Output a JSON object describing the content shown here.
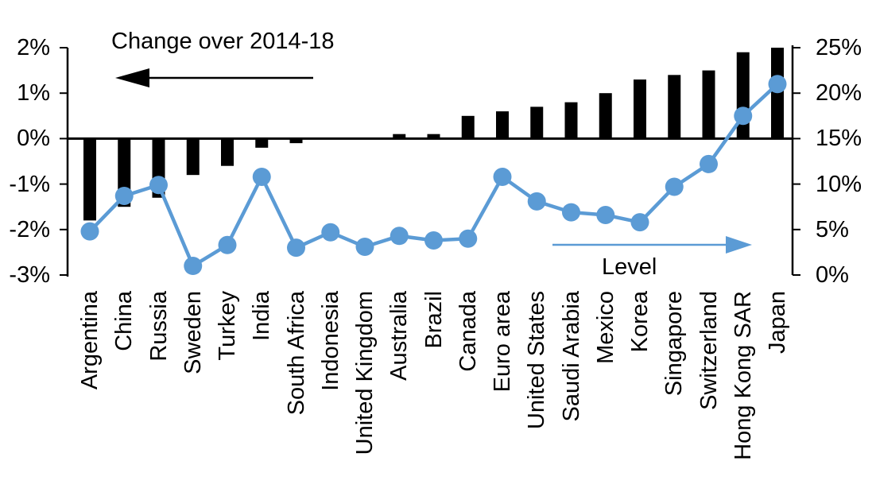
{
  "chart_data": {
    "type": "bar",
    "subtype": "dual-axis bar + line",
    "title": "Change over 2014-18",
    "line_label": "Level",
    "categories": [
      "Argentina",
      "China",
      "Russia",
      "Sweden",
      "Turkey",
      "India",
      "South Africa",
      "Indonesia",
      "United Kingdom",
      "Australia",
      "Brazil",
      "Canada",
      "Euro area",
      "United States",
      "Saudi Arabia",
      "Mexico",
      "Korea",
      "Singapore",
      "Switzerland",
      "Hong Kong SAR",
      "Japan"
    ],
    "series": [
      {
        "name": "Change over 2014-18",
        "type": "bar",
        "axis": "left",
        "color": "#000000",
        "values": [
          -1.8,
          -1.5,
          -1.3,
          -0.8,
          -0.6,
          -0.2,
          -0.1,
          0.0,
          0.0,
          0.1,
          0.1,
          0.5,
          0.6,
          0.7,
          0.8,
          1.0,
          1.3,
          1.4,
          1.5,
          1.9,
          2.0
        ]
      },
      {
        "name": "Level",
        "type": "line",
        "axis": "right",
        "color": "#5b9bd5",
        "values": [
          4.8,
          8.7,
          9.9,
          1.0,
          3.3,
          10.8,
          3.0,
          4.7,
          3.1,
          4.3,
          3.8,
          4.0,
          10.8,
          8.1,
          6.9,
          6.6,
          5.8,
          9.7,
          12.2,
          17.5,
          21.0
        ]
      }
    ],
    "left_axis": {
      "tick_labels": [
        "2%",
        "1%",
        "0%",
        "-1%",
        "-2%",
        "-3%"
      ],
      "tick_values": [
        2,
        1,
        0,
        -1,
        -2,
        -3
      ],
      "min": -3,
      "max": 2
    },
    "right_axis": {
      "tick_labels": [
        "25%",
        "20%",
        "15%",
        "10%",
        "5%",
        "0%"
      ],
      "tick_values": [
        25,
        20,
        15,
        10,
        5,
        0
      ],
      "min": 0,
      "max": 25
    },
    "annotations": {
      "left_arrow_points_to": "left axis (change)",
      "right_arrow_points_to": "right axis (level)"
    },
    "legend_position": "in-plot arrows",
    "grid": "off",
    "colors": {
      "bar": "#000000",
      "line": "#5b9bd5",
      "text": "#000000",
      "background": "#ffffff"
    }
  }
}
